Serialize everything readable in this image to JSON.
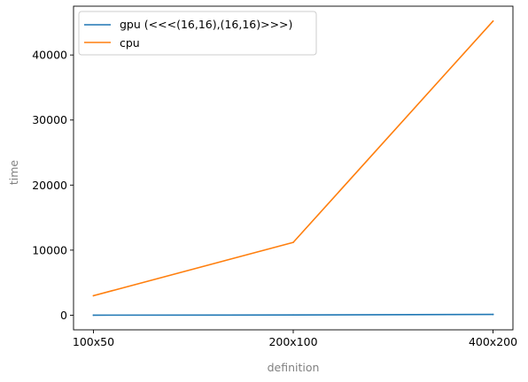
{
  "chart_data": {
    "type": "line",
    "categories": [
      "100x50",
      "200x100",
      "400x200"
    ],
    "series": [
      {
        "name": "gpu (<<<(16,16),(16,16)>>>)",
        "values": [
          12,
          30,
          110
        ],
        "color": "#1f77b4"
      },
      {
        "name": "cpu",
        "values": [
          3000,
          11200,
          45200
        ],
        "color": "#ff7f0e"
      }
    ],
    "title": "",
    "xlabel": "definition",
    "ylabel": "time",
    "ylim": [
      -2250,
      47500
    ],
    "yticks": [
      0,
      10000,
      20000,
      30000,
      40000
    ],
    "ytick_labels": [
      "0",
      "10000",
      "20000",
      "30000",
      "40000"
    ],
    "grid": false,
    "legend_position": "upper-left"
  }
}
